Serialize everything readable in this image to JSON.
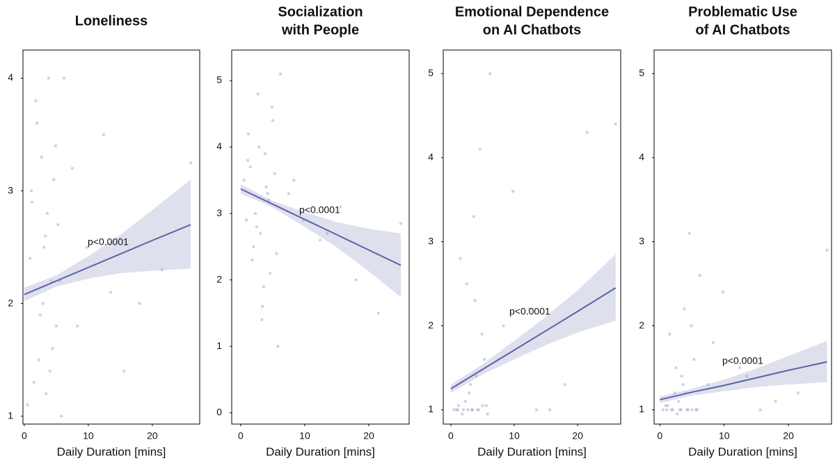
{
  "chart_data": [
    {
      "type": "scatter",
      "title": [
        "Loneliness"
      ],
      "xlabel": "Daily Duration [mins]",
      "annotation": "p<0.0001",
      "color": "#9a9ccc",
      "line_color": "#5a62a6",
      "band_color": "#c9cce3",
      "xlim": [
        -0.2,
        27.4
      ],
      "ylim": [
        0.93,
        4.25
      ],
      "xticks": [
        0,
        10,
        20
      ],
      "yticks": [
        1,
        2,
        3,
        4
      ],
      "x": [
        0.5,
        1.2,
        1.8,
        2.3,
        2.7,
        3.1,
        3.4,
        3.8,
        4.2,
        4.6,
        5.0,
        5.3,
        5.8,
        6.2,
        0.9,
        1.5,
        2.0,
        2.9,
        3.6,
        4.4,
        4.9,
        5.6,
        1.1,
        2.5,
        3.3,
        4.0,
        7.5,
        9.8,
        12.4,
        15.6,
        18.0,
        21.5,
        26.0,
        8.3,
        13.5
      ],
      "values": [
        1.1,
        2.9,
        3.8,
        1.5,
        3.3,
        2.5,
        1.2,
        4.0,
        2.2,
        3.1,
        1.8,
        2.7,
        1.0,
        4.0,
        2.4,
        1.3,
        3.6,
        2.0,
        2.8,
        1.6,
        3.4,
        2.2,
        3.0,
        1.9,
        2.6,
        1.4,
        3.2,
        2.5,
        3.5,
        1.4,
        2.0,
        2.3,
        3.25,
        1.8,
        2.1
      ],
      "fit": {
        "x": [
          0,
          5,
          10,
          15,
          20,
          26
        ],
        "values": [
          2.08,
          2.2,
          2.32,
          2.44,
          2.56,
          2.7
        ],
        "lower": [
          2.02,
          2.15,
          2.22,
          2.27,
          2.29,
          2.31
        ],
        "upper": [
          2.14,
          2.25,
          2.42,
          2.61,
          2.83,
          3.1
        ]
      }
    },
    {
      "type": "scatter",
      "title": [
        "Socialization",
        "with People"
      ],
      "xlabel": "Daily Duration [mins]",
      "annotation": "p<0.0001",
      "color": "#9a9ccc",
      "line_color": "#5a62a6",
      "band_color": "#c9cce3",
      "xlim": [
        -1.4,
        26.3
      ],
      "ylim": [
        -0.17,
        5.46
      ],
      "xticks": [
        0,
        10,
        20
      ],
      "yticks": [
        0,
        1,
        2,
        3,
        4,
        5
      ],
      "x": [
        0.5,
        1.2,
        1.8,
        2.3,
        2.7,
        3.1,
        3.4,
        3.8,
        4.2,
        4.6,
        5.0,
        5.3,
        5.8,
        6.2,
        0.9,
        1.5,
        2.0,
        2.9,
        3.6,
        4.4,
        4.9,
        5.6,
        1.1,
        2.5,
        3.3,
        4.0,
        7.5,
        9.8,
        12.4,
        15.6,
        18.0,
        21.5,
        25.0,
        8.3,
        13.5
      ],
      "values": [
        3.5,
        4.2,
        2.3,
        3.0,
        4.8,
        2.7,
        1.6,
        3.9,
        3.3,
        2.1,
        4.4,
        3.6,
        1.0,
        5.1,
        2.9,
        3.7,
        2.5,
        4.0,
        1.9,
        3.2,
        4.6,
        2.4,
        3.8,
        2.8,
        1.4,
        3.4,
        3.3,
        2.9,
        2.6,
        3.1,
        2.0,
        1.5,
        2.85,
        3.5,
        2.7
      ],
      "fit": {
        "x": [
          0,
          5,
          10,
          15,
          20,
          25
        ],
        "values": [
          3.37,
          3.14,
          2.91,
          2.68,
          2.45,
          2.22
        ],
        "lower": [
          3.3,
          3.09,
          2.8,
          2.49,
          2.13,
          1.74
        ],
        "upper": [
          3.44,
          3.19,
          3.02,
          2.87,
          2.77,
          2.7
        ]
      }
    },
    {
      "type": "scatter",
      "title": [
        "Emotional Dependence",
        "on AI Chatbots"
      ],
      "xlabel": "Daily Duration [mins]",
      "annotation": "p<0.0001",
      "color": "#9a9ccc",
      "line_color": "#5a62a6",
      "band_color": "#c9cce3",
      "xlim": [
        -1.2,
        26.8
      ],
      "ylim": [
        0.83,
        5.28
      ],
      "xticks": [
        0,
        10,
        20
      ],
      "yticks": [
        1,
        2,
        3,
        4,
        5
      ],
      "x": [
        0.5,
        1.2,
        1.8,
        2.3,
        2.7,
        3.1,
        3.4,
        3.8,
        4.2,
        4.6,
        5.0,
        5.3,
        5.8,
        6.2,
        0.9,
        1.5,
        2.0,
        2.9,
        3.6,
        4.4,
        4.9,
        5.6,
        1.1,
        2.5,
        3.3,
        4.0,
        7.5,
        9.8,
        12.4,
        15.6,
        18.0,
        21.5,
        26.0,
        8.3,
        13.5
      ],
      "values": [
        1.0,
        1.05,
        0.95,
        1.1,
        1.0,
        1.3,
        1.0,
        2.3,
        1.0,
        4.1,
        1.05,
        1.6,
        0.95,
        5.0,
        1.0,
        2.8,
        1.0,
        1.2,
        3.3,
        1.0,
        1.9,
        1.05,
        1.0,
        2.5,
        1.0,
        1.4,
        1.6,
        3.6,
        2.2,
        1.0,
        1.3,
        4.3,
        4.4,
        2.0,
        1.0
      ],
      "fit": {
        "x": [
          0,
          5,
          10,
          15,
          20,
          26
        ],
        "values": [
          1.25,
          1.48,
          1.71,
          1.94,
          2.17,
          2.45
        ],
        "lower": [
          1.2,
          1.42,
          1.6,
          1.77,
          1.92,
          2.06
        ],
        "upper": [
          1.3,
          1.54,
          1.82,
          2.11,
          2.42,
          2.85
        ]
      }
    },
    {
      "type": "scatter",
      "title": [
        "Problematic Use",
        "of AI Chatbots"
      ],
      "xlabel": "Daily Duration [mins]",
      "annotation": "p<0.0001",
      "color": "#9a9ccc",
      "line_color": "#5a62a6",
      "band_color": "#c9cce3",
      "xlim": [
        -0.9,
        26.7
      ],
      "ylim": [
        0.83,
        5.28
      ],
      "xticks": [
        0,
        10,
        20
      ],
      "yticks": [
        1,
        2,
        3,
        4,
        5
      ],
      "x": [
        0.5,
        1.2,
        1.8,
        2.3,
        2.7,
        3.1,
        3.4,
        3.8,
        4.2,
        4.6,
        5.0,
        5.3,
        5.8,
        6.2,
        0.9,
        1.5,
        2.0,
        2.9,
        3.6,
        4.4,
        4.9,
        5.6,
        1.1,
        2.5,
        3.3,
        4.0,
        7.5,
        9.8,
        12.4,
        15.6,
        18.0,
        21.5,
        26.0,
        8.3,
        13.5
      ],
      "values": [
        1.0,
        1.05,
        1.0,
        1.2,
        0.95,
        1.0,
        1.4,
        2.2,
        1.0,
        3.1,
        1.0,
        1.6,
        1.0,
        2.6,
        1.05,
        1.9,
        1.0,
        1.1,
        1.3,
        1.0,
        2.0,
        1.0,
        1.0,
        1.5,
        1.0,
        1.2,
        1.3,
        2.4,
        1.5,
        1.0,
        1.1,
        1.2,
        2.9,
        1.8,
        1.4
      ],
      "fit": {
        "x": [
          0,
          5,
          10,
          15,
          20,
          26
        ],
        "values": [
          1.12,
          1.21,
          1.29,
          1.38,
          1.47,
          1.57
        ],
        "lower": [
          1.08,
          1.17,
          1.22,
          1.27,
          1.3,
          1.33
        ],
        "upper": [
          1.16,
          1.25,
          1.36,
          1.49,
          1.64,
          1.82
        ]
      }
    }
  ]
}
